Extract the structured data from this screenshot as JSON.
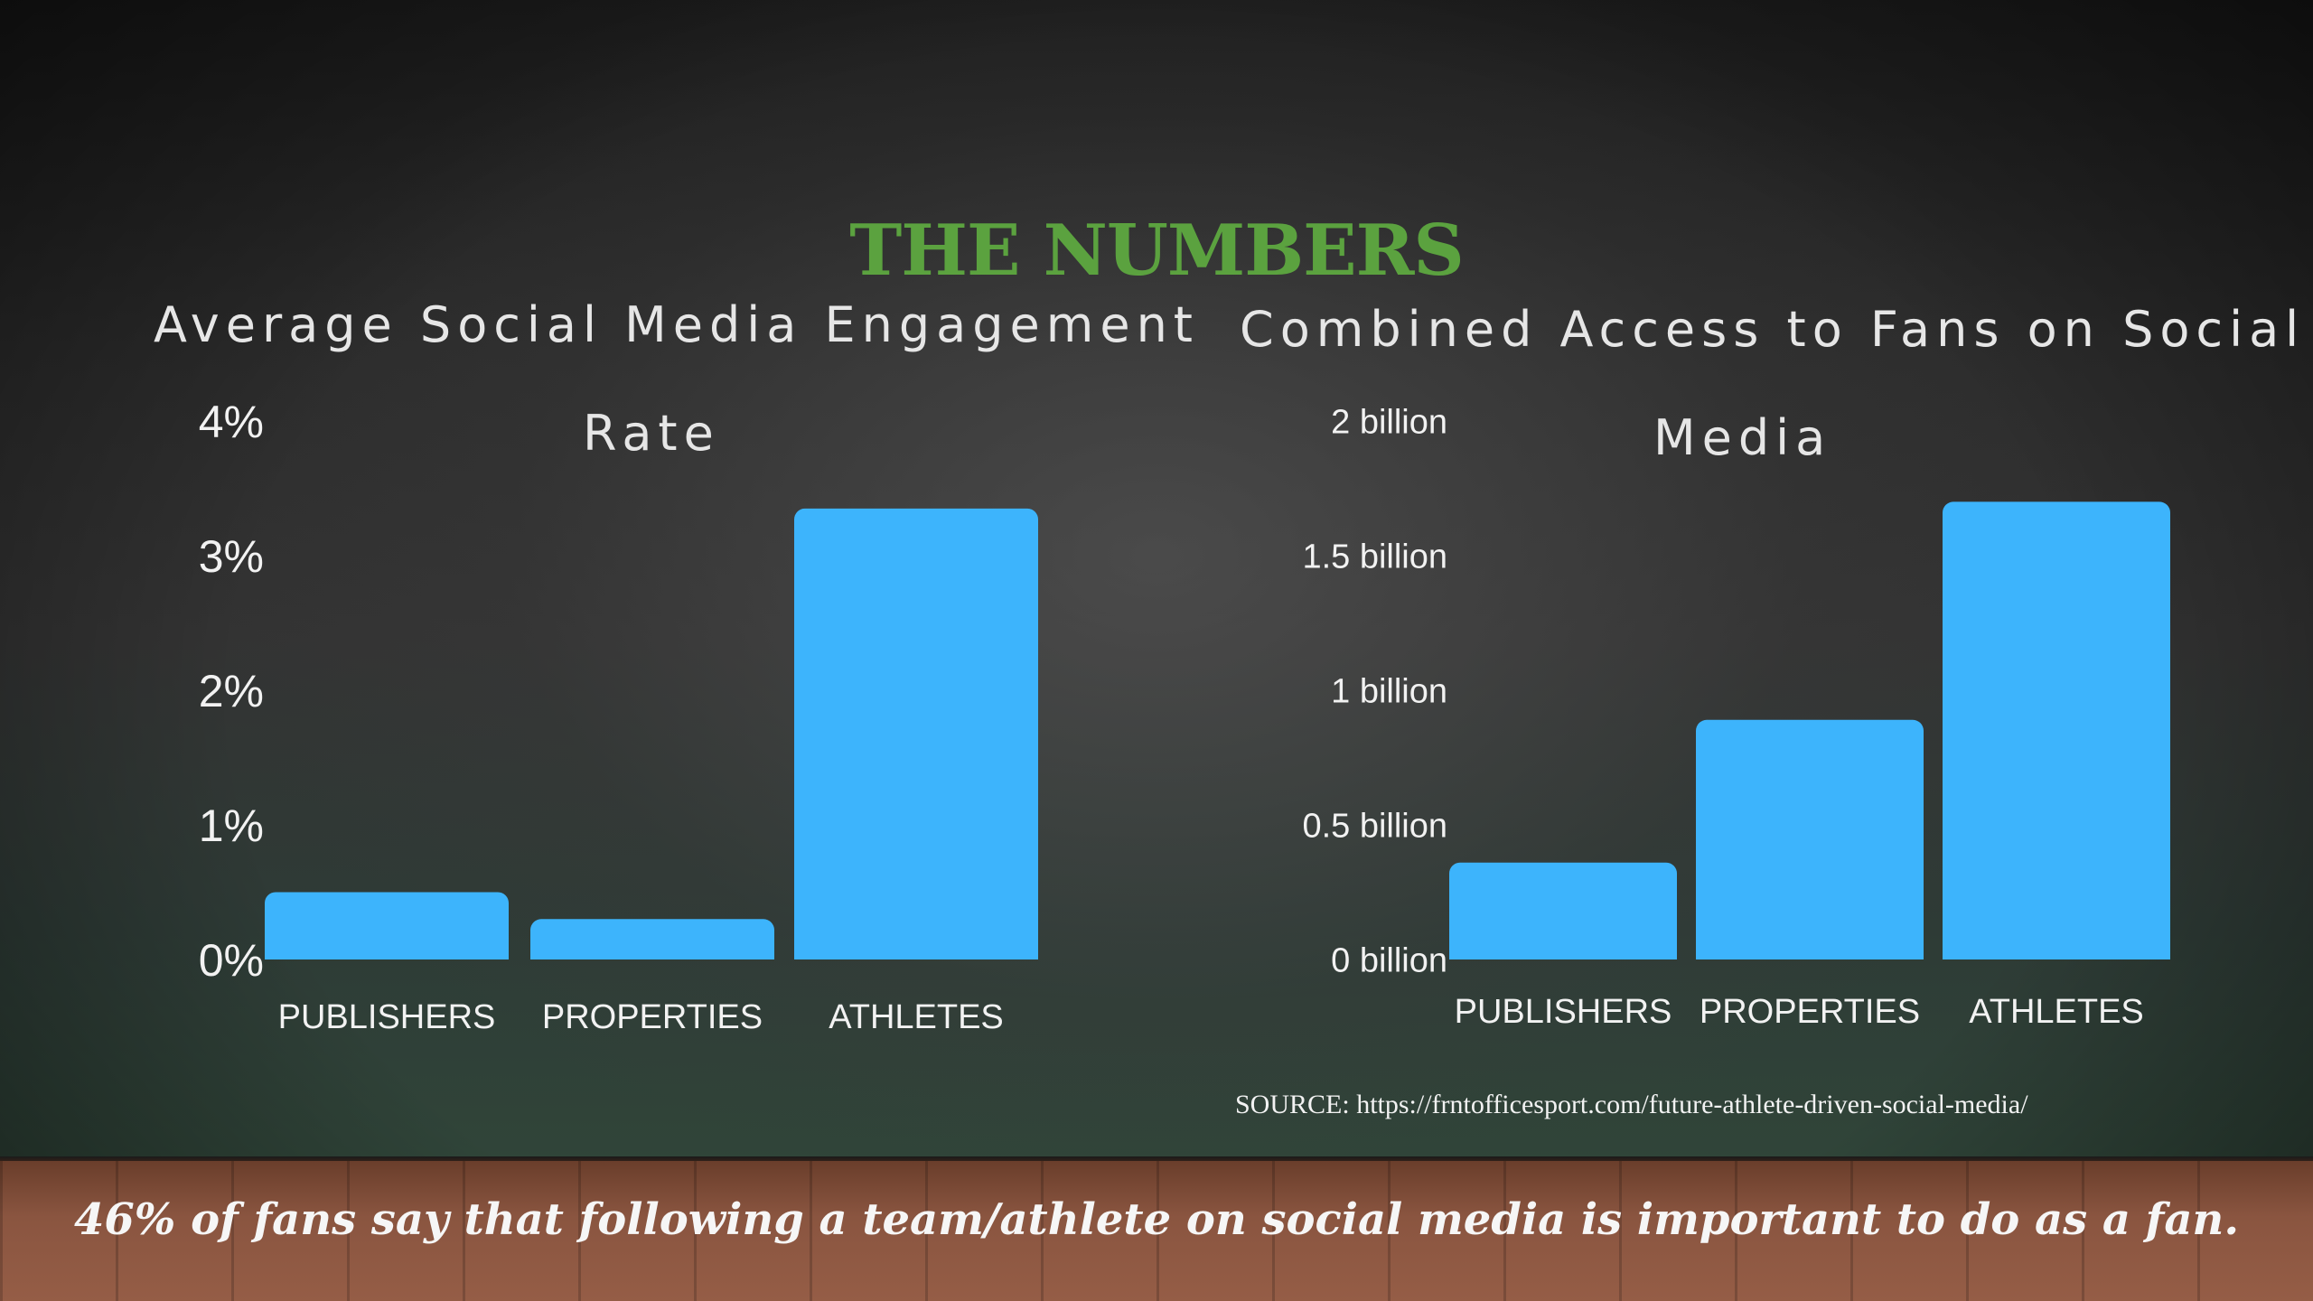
{
  "slide": {
    "headline": "THE NUMBERS",
    "source": "SOURCE: https://frntofficesport.com/future-athlete-driven-social-media/",
    "caption": "46% of fans say that following a team/athlete on social media is important to do as a fan."
  },
  "colors": {
    "bar": "#3db4fc",
    "headline": "#5ba23f",
    "axis_text": "#f2f2f2"
  },
  "chart_data": [
    {
      "type": "bar",
      "title_line1": "Average Social Media Engagement",
      "title_line2": "Rate",
      "categories": [
        "PUBLISHERS",
        "PROPERTIES",
        "ATHLETES"
      ],
      "values": [
        0.5,
        0.3,
        3.35
      ],
      "unit": "%",
      "ylim": [
        0,
        4
      ],
      "ticks": [
        0,
        1,
        2,
        3,
        4
      ],
      "tick_labels": [
        "0%",
        "1%",
        "2%",
        "3%",
        "4%"
      ],
      "grid": false,
      "legend": "none"
    },
    {
      "type": "bar",
      "title_line1": "Combined Access to Fans on Social",
      "title_line2": "Media",
      "categories": [
        "PUBLISHERS",
        "PROPERTIES",
        "ATHLETES"
      ],
      "values": [
        0.36,
        0.89,
        1.7
      ],
      "unit": "billion",
      "ylim": [
        0,
        2
      ],
      "ticks": [
        0,
        0.5,
        1,
        1.5,
        2
      ],
      "tick_labels": [
        "0 billion",
        "0.5 billion",
        "1 billion",
        "1.5 billion",
        "2 billion"
      ],
      "grid": false,
      "legend": "none"
    }
  ]
}
